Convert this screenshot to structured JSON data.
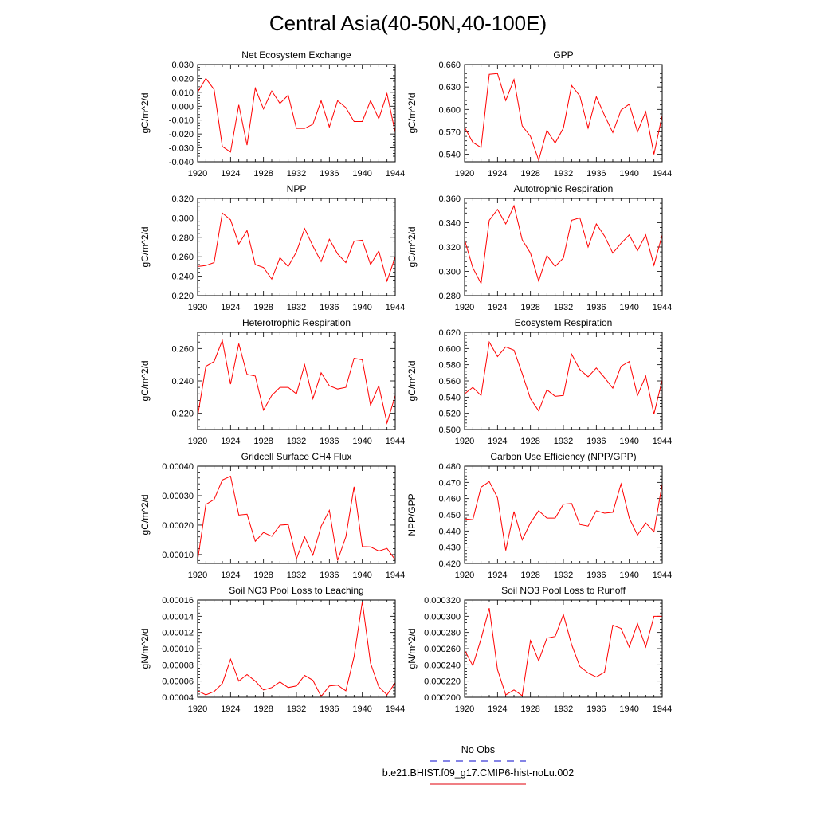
{
  "page_title": "Central Asia(40-50N,40-100E)",
  "legend": {
    "entries": [
      {
        "label": "No Obs",
        "color": "#3b3bd6",
        "style": "dashed"
      },
      {
        "label": "b.e21.BHIST.f09_g17.CMIP6-hist-noLu.002",
        "color": "#e8333a",
        "style": "solid"
      }
    ]
  },
  "chart_data": [
    {
      "type": "line",
      "title": "Net Ecosystem Exchange",
      "ylabel": "gC/m^2/d",
      "xlabel": "",
      "xlim": [
        1920,
        1944
      ],
      "ylim": [
        -0.04,
        0.03
      ],
      "xticks": [
        "1920",
        "1924",
        "1928",
        "1932",
        "1936",
        "1940",
        "1944"
      ],
      "yticks": [
        "-0.040",
        "-0.030",
        "-0.020",
        "-0.010",
        "0.000",
        "0.010",
        "0.020",
        "0.030"
      ],
      "x": [
        1920,
        1921,
        1922,
        1923,
        1924,
        1925,
        1926,
        1927,
        1928,
        1929,
        1930,
        1931,
        1932,
        1933,
        1934,
        1935,
        1936,
        1937,
        1938,
        1939,
        1940,
        1941,
        1942,
        1943,
        1944
      ],
      "series": [
        {
          "color": "#ff0000",
          "values": [
            0.01,
            0.02,
            0.012,
            -0.029,
            -0.033,
            0.001,
            -0.028,
            0.013,
            -0.002,
            0.011,
            0.002,
            0.008,
            -0.016,
            -0.016,
            -0.013,
            0.004,
            -0.015,
            0.004,
            -0.001,
            -0.011,
            -0.011,
            0.004,
            -0.009,
            0.009,
            -0.019
          ]
        }
      ]
    },
    {
      "type": "line",
      "title": "GPP",
      "ylabel": "gC/m^2/d",
      "xlabel": "",
      "xlim": [
        1920,
        1944
      ],
      "ylim": [
        0.53,
        0.66
      ],
      "xticks": [
        "1920",
        "1924",
        "1928",
        "1932",
        "1936",
        "1940",
        "1944"
      ],
      "yticks": [
        "0.540",
        "0.570",
        "0.600",
        "0.630",
        "0.660"
      ],
      "x": [
        1920,
        1921,
        1922,
        1923,
        1924,
        1925,
        1926,
        1927,
        1928,
        1929,
        1930,
        1931,
        1932,
        1933,
        1934,
        1935,
        1936,
        1937,
        1938,
        1939,
        1940,
        1941,
        1942,
        1943,
        1944
      ],
      "series": [
        {
          "color": "#ff0000",
          "values": [
            0.576,
            0.556,
            0.549,
            0.647,
            0.648,
            0.612,
            0.64,
            0.578,
            0.564,
            0.532,
            0.572,
            0.555,
            0.575,
            0.632,
            0.618,
            0.575,
            0.617,
            0.592,
            0.569,
            0.599,
            0.607,
            0.57,
            0.597,
            0.54,
            0.592
          ]
        }
      ]
    },
    {
      "type": "line",
      "title": "NPP",
      "ylabel": "gC/m^2/d",
      "xlabel": "",
      "xlim": [
        1920,
        1944
      ],
      "ylim": [
        0.22,
        0.32
      ],
      "xticks": [
        "1920",
        "1924",
        "1928",
        "1932",
        "1936",
        "1940",
        "1944"
      ],
      "yticks": [
        "0.220",
        "0.240",
        "0.260",
        "0.280",
        "0.300",
        "0.320"
      ],
      "x": [
        1920,
        1921,
        1922,
        1923,
        1924,
        1925,
        1926,
        1927,
        1928,
        1929,
        1930,
        1931,
        1932,
        1933,
        1934,
        1935,
        1936,
        1937,
        1938,
        1939,
        1940,
        1941,
        1942,
        1943,
        1944
      ],
      "series": [
        {
          "color": "#ff0000",
          "values": [
            0.25,
            0.251,
            0.254,
            0.305,
            0.298,
            0.273,
            0.287,
            0.252,
            0.249,
            0.237,
            0.259,
            0.25,
            0.265,
            0.289,
            0.271,
            0.255,
            0.278,
            0.263,
            0.254,
            0.276,
            0.277,
            0.252,
            0.266,
            0.235,
            0.26
          ]
        }
      ]
    },
    {
      "type": "line",
      "title": "Autotrophic Respiration",
      "ylabel": "gC/m^2/d",
      "xlabel": "",
      "xlim": [
        1920,
        1944
      ],
      "ylim": [
        0.28,
        0.36
      ],
      "xticks": [
        "1920",
        "1924",
        "1928",
        "1932",
        "1936",
        "1940",
        "1944"
      ],
      "yticks": [
        "0.280",
        "0.300",
        "0.320",
        "0.340",
        "0.360"
      ],
      "x": [
        1920,
        1921,
        1922,
        1923,
        1924,
        1925,
        1926,
        1927,
        1928,
        1929,
        1930,
        1931,
        1932,
        1933,
        1934,
        1935,
        1936,
        1937,
        1938,
        1939,
        1940,
        1941,
        1942,
        1943,
        1944
      ],
      "series": [
        {
          "color": "#ff0000",
          "values": [
            0.326,
            0.303,
            0.29,
            0.342,
            0.351,
            0.339,
            0.354,
            0.326,
            0.315,
            0.292,
            0.313,
            0.304,
            0.311,
            0.342,
            0.344,
            0.32,
            0.339,
            0.329,
            0.315,
            0.323,
            0.33,
            0.317,
            0.33,
            0.305,
            0.33
          ]
        }
      ]
    },
    {
      "type": "line",
      "title": "Heterotrophic Respiration",
      "ylabel": "gC/m^2/d",
      "xlabel": "",
      "xlim": [
        1920,
        1944
      ],
      "ylim": [
        0.21,
        0.27
      ],
      "xticks": [
        "1920",
        "1924",
        "1928",
        "1932",
        "1936",
        "1940",
        "1944"
      ],
      "yticks": [
        "0.220",
        "0.240",
        "0.260"
      ],
      "x": [
        1920,
        1921,
        1922,
        1923,
        1924,
        1925,
        1926,
        1927,
        1928,
        1929,
        1930,
        1931,
        1932,
        1933,
        1934,
        1935,
        1936,
        1937,
        1938,
        1939,
        1940,
        1941,
        1942,
        1943,
        1944
      ],
      "series": [
        {
          "color": "#ff0000",
          "values": [
            0.218,
            0.249,
            0.252,
            0.265,
            0.238,
            0.263,
            0.244,
            0.243,
            0.222,
            0.231,
            0.236,
            0.236,
            0.232,
            0.25,
            0.229,
            0.245,
            0.237,
            0.235,
            0.236,
            0.254,
            0.253,
            0.225,
            0.237,
            0.214,
            0.231
          ]
        }
      ]
    },
    {
      "type": "line",
      "title": "Ecosystem Respiration",
      "ylabel": "gC/m^2/d",
      "xlabel": "",
      "xlim": [
        1920,
        1944
      ],
      "ylim": [
        0.5,
        0.62
      ],
      "xticks": [
        "1920",
        "1924",
        "1928",
        "1932",
        "1936",
        "1940",
        "1944"
      ],
      "yticks": [
        "0.500",
        "0.520",
        "0.540",
        "0.560",
        "0.580",
        "0.600",
        "0.620"
      ],
      "x": [
        1920,
        1921,
        1922,
        1923,
        1924,
        1925,
        1926,
        1927,
        1928,
        1929,
        1930,
        1931,
        1932,
        1933,
        1934,
        1935,
        1936,
        1937,
        1938,
        1939,
        1940,
        1941,
        1942,
        1943,
        1944
      ],
      "series": [
        {
          "color": "#ff0000",
          "values": [
            0.544,
            0.552,
            0.542,
            0.608,
            0.59,
            0.602,
            0.598,
            0.569,
            0.538,
            0.523,
            0.549,
            0.541,
            0.542,
            0.593,
            0.574,
            0.565,
            0.576,
            0.564,
            0.551,
            0.578,
            0.584,
            0.542,
            0.566,
            0.519,
            0.561
          ]
        }
      ]
    },
    {
      "type": "line",
      "title": "Gridcell Surface CH4 Flux",
      "ylabel": "gC/m^2/d",
      "xlabel": "",
      "xlim": [
        1920,
        1944
      ],
      "ylim": [
        7e-05,
        0.0004
      ],
      "xticks": [
        "1920",
        "1924",
        "1928",
        "1932",
        "1936",
        "1940",
        "1944"
      ],
      "yticks": [
        "0.00010",
        "0.00020",
        "0.00030",
        "0.00040"
      ],
      "x": [
        1920,
        1921,
        1922,
        1923,
        1924,
        1925,
        1926,
        1927,
        1928,
        1929,
        1930,
        1931,
        1932,
        1933,
        1934,
        1935,
        1936,
        1937,
        1938,
        1939,
        1940,
        1941,
        1942,
        1943,
        1944
      ],
      "series": [
        {
          "color": "#ff0000",
          "values": [
            8e-05,
            0.00027,
            0.000287,
            0.000353,
            0.000366,
            0.000234,
            0.000237,
            0.000145,
            0.000175,
            0.000162,
            0.0002,
            0.000202,
            8.5e-05,
            0.00016,
            9.8e-05,
            0.000196,
            0.00025,
            8e-05,
            0.00016,
            0.00033,
            0.000127,
            0.000126,
            0.000112,
            0.000121,
            8.2e-05
          ]
        }
      ]
    },
    {
      "type": "line",
      "title": "Carbon Use Efficiency (NPP/GPP)",
      "ylabel": "NPP/GPP",
      "xlabel": "",
      "xlim": [
        1920,
        1944
      ],
      "ylim": [
        0.42,
        0.48
      ],
      "xticks": [
        "1920",
        "1924",
        "1928",
        "1932",
        "1936",
        "1940",
        "1944"
      ],
      "yticks": [
        "0.420",
        "0.430",
        "0.440",
        "0.450",
        "0.460",
        "0.470",
        "0.480"
      ],
      "x": [
        1920,
        1921,
        1922,
        1923,
        1924,
        1925,
        1926,
        1927,
        1928,
        1929,
        1930,
        1931,
        1932,
        1933,
        1934,
        1935,
        1936,
        1937,
        1938,
        1939,
        1940,
        1941,
        1942,
        1943,
        1944
      ],
      "series": [
        {
          "color": "#ff0000",
          "values": [
            0.4475,
            0.447,
            0.467,
            0.4705,
            0.4605,
            0.428,
            0.452,
            0.4345,
            0.445,
            0.4525,
            0.448,
            0.448,
            0.4565,
            0.457,
            0.444,
            0.443,
            0.4525,
            0.451,
            0.4515,
            0.469,
            0.448,
            0.4375,
            0.445,
            0.4395,
            0.469
          ]
        }
      ]
    },
    {
      "type": "line",
      "title": "Soil NO3 Pool Loss to Leaching",
      "ylabel": "gN/m^2/d",
      "xlabel": "",
      "xlim": [
        1920,
        1944
      ],
      "ylim": [
        4e-05,
        0.00016
      ],
      "xticks": [
        "1920",
        "1924",
        "1928",
        "1932",
        "1936",
        "1940",
        "1944"
      ],
      "yticks": [
        "0.00004",
        "0.00006",
        "0.00008",
        "0.00010",
        "0.00012",
        "0.00014",
        "0.00016"
      ],
      "x": [
        1920,
        1921,
        1922,
        1923,
        1924,
        1925,
        1926,
        1927,
        1928,
        1929,
        1930,
        1931,
        1932,
        1933,
        1934,
        1935,
        1936,
        1937,
        1938,
        1939,
        1940,
        1941,
        1942,
        1943,
        1944
      ],
      "series": [
        {
          "color": "#ff0000",
          "values": [
            4.8e-05,
            4.3e-05,
            4.7e-05,
            5.7e-05,
            8.7e-05,
            6e-05,
            6.8e-05,
            6e-05,
            4.9e-05,
            5.2e-05,
            5.9e-05,
            5.2e-05,
            5.4e-05,
            6.7e-05,
            6.1e-05,
            4.1e-05,
            5.4e-05,
            5.5e-05,
            4.8e-05,
            9e-05,
            0.000158,
            8.2e-05,
            5.3e-05,
            4.3e-05,
            5.8e-05
          ]
        }
      ]
    },
    {
      "type": "line",
      "title": "Soil NO3 Pool Loss to Runoff",
      "ylabel": "gN/m^2/d",
      "xlabel": "",
      "xlim": [
        1920,
        1944
      ],
      "ylim": [
        0.0002,
        0.00032
      ],
      "xticks": [
        "1920",
        "1924",
        "1928",
        "1932",
        "1936",
        "1940",
        "1944"
      ],
      "yticks": [
        "0.000200",
        "0.000220",
        "0.000240",
        "0.000260",
        "0.000280",
        "0.000300",
        "0.000320"
      ],
      "x": [
        1920,
        1921,
        1922,
        1923,
        1924,
        1925,
        1926,
        1927,
        1928,
        1929,
        1930,
        1931,
        1932,
        1933,
        1934,
        1935,
        1936,
        1937,
        1938,
        1939,
        1940,
        1941,
        1942,
        1943,
        1944
      ],
      "series": [
        {
          "color": "#ff0000",
          "values": [
            0.000258,
            0.000239,
            0.000272,
            0.00031,
            0.000234,
            0.000203,
            0.000209,
            0.000202,
            0.00027,
            0.000245,
            0.000273,
            0.000275,
            0.000302,
            0.000265,
            0.000238,
            0.00023,
            0.000225,
            0.000231,
            0.000289,
            0.000285,
            0.000262,
            0.000291,
            0.000262,
            0.0003,
            0.0003
          ]
        }
      ]
    }
  ]
}
